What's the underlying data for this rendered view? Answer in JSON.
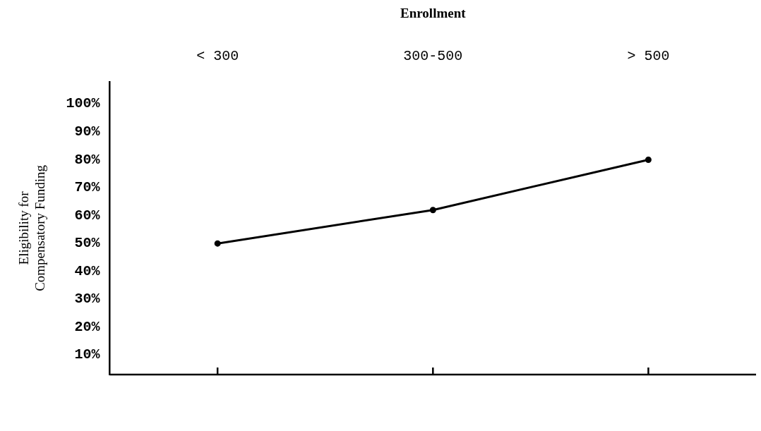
{
  "chart_data": {
    "type": "line",
    "xlabel": "Enrollment",
    "ylabel": "Eligibility for\nCompensatory Funding",
    "categories": [
      "< 300",
      "300-500",
      "> 500"
    ],
    "series": [
      {
        "color": "#000000",
        "values": [
          50,
          62,
          80
        ]
      }
    ],
    "ylim": [
      3,
      108
    ],
    "yticks": [
      {
        "value": 10,
        "label": "10%"
      },
      {
        "value": 20,
        "label": "20%"
      },
      {
        "value": 30,
        "label": "30%"
      },
      {
        "value": 40,
        "label": "40%"
      },
      {
        "value": 50,
        "label": "50%"
      },
      {
        "value": 60,
        "label": "60%"
      },
      {
        "value": 70,
        "label": "70%"
      },
      {
        "value": 80,
        "label": "80%"
      },
      {
        "value": 90,
        "label": "90%"
      },
      {
        "value": 100,
        "label": "100%"
      }
    ],
    "grid": false,
    "legend": false,
    "marker": "circle",
    "line_style": "solid"
  }
}
